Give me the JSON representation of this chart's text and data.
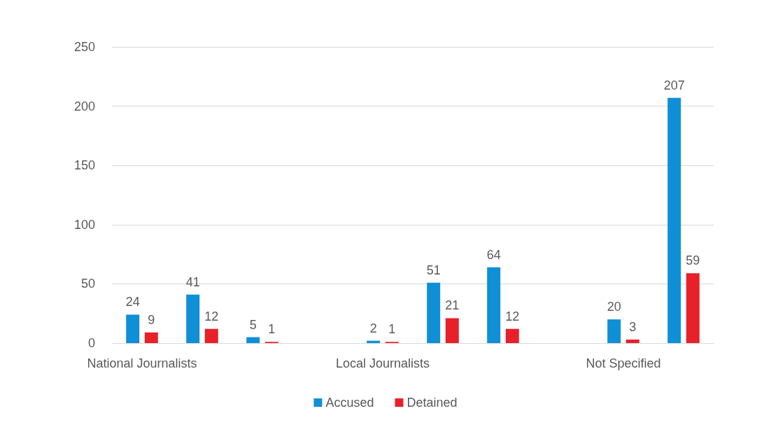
{
  "chart_data": {
    "type": "bar",
    "categories": [
      "National Journalists",
      null,
      null,
      null,
      "Local Journalists",
      null,
      null,
      null,
      "Not Specified",
      null
    ],
    "series": [
      {
        "name": "Accused",
        "color": "#0f8fd6",
        "values": [
          24,
          41,
          5,
          null,
          2,
          51,
          64,
          null,
          20,
          207
        ]
      },
      {
        "name": "Detained",
        "color": "#e8202a",
        "values": [
          9,
          12,
          1,
          null,
          1,
          21,
          12,
          null,
          3,
          59
        ]
      }
    ],
    "ylim": [
      0,
      250
    ],
    "yticks": [
      0,
      50,
      100,
      150,
      200,
      250
    ],
    "grid": "y",
    "legend": "bottom",
    "data_labels": true
  }
}
